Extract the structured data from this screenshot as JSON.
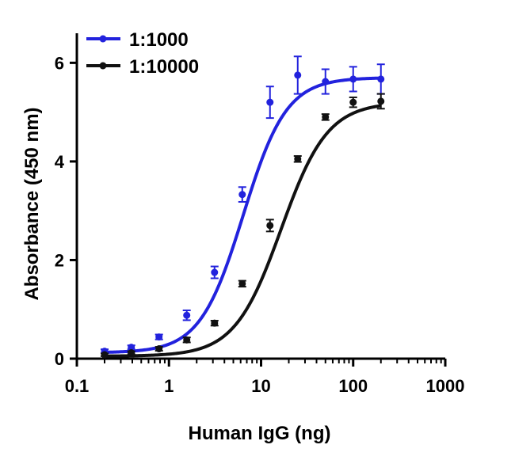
{
  "chart_data": {
    "type": "scatter",
    "title": "",
    "xlabel": "Human IgG (ng)",
    "ylabel": "Absorbance (450 nm)",
    "xscale": "log",
    "xlim": [
      0.1,
      1000
    ],
    "ylim": [
      0,
      6.6
    ],
    "xticks": [
      0.1,
      1,
      10,
      100,
      1000
    ],
    "xtick_labels": [
      "0.1",
      "1",
      "10",
      "100",
      "1000"
    ],
    "yticks": [
      0,
      2,
      4,
      6
    ],
    "ytick_labels": [
      "0",
      "2",
      "4",
      "6"
    ],
    "grid": false,
    "legend_position": "top-left",
    "fitted_curve": "sigmoidal",
    "series": [
      {
        "name": "1:1000",
        "color": "#2222dd",
        "x": [
          0.2,
          0.39,
          0.78,
          1.56,
          3.125,
          6.25,
          12.5,
          25,
          50,
          100,
          200
        ],
        "y": [
          0.15,
          0.23,
          0.44,
          0.88,
          1.75,
          3.33,
          5.2,
          5.75,
          5.62,
          5.67,
          5.67
        ],
        "error": [
          0.04,
          0.04,
          0.05,
          0.1,
          0.12,
          0.15,
          0.32,
          0.38,
          0.25,
          0.25,
          0.3
        ],
        "fit": {
          "bottom": 0.12,
          "top": 5.7,
          "ec50": 6.4,
          "hill": 1.85
        }
      },
      {
        "name": "1:10000",
        "color": "#111111",
        "x": [
          0.2,
          0.39,
          0.78,
          1.56,
          3.125,
          6.25,
          12.5,
          25,
          50,
          100,
          200
        ],
        "y": [
          0.08,
          0.12,
          0.2,
          0.38,
          0.72,
          1.52,
          2.7,
          4.05,
          4.9,
          5.2,
          5.22
        ],
        "error": [
          0.03,
          0.03,
          0.04,
          0.05,
          0.05,
          0.06,
          0.12,
          0.06,
          0.06,
          0.1,
          0.15
        ],
        "fit": {
          "bottom": 0.05,
          "top": 5.2,
          "ec50": 16.5,
          "hill": 1.72
        }
      }
    ]
  }
}
